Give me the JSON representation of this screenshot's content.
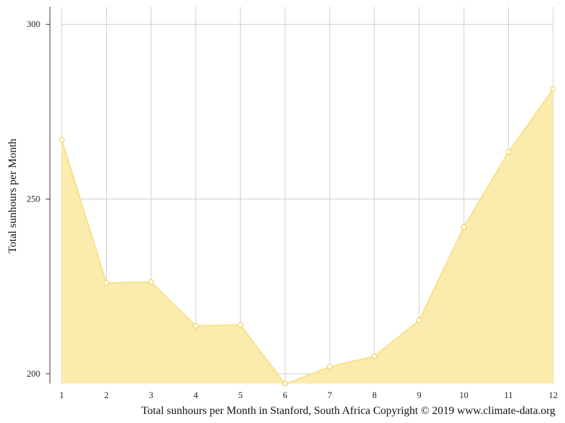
{
  "chart_data": {
    "type": "area",
    "x": [
      1,
      2,
      3,
      4,
      5,
      6,
      7,
      8,
      9,
      10,
      11,
      12
    ],
    "series": [
      {
        "values": [
          267,
          226,
          226.3,
          213.7,
          214,
          197,
          202,
          205,
          215.3,
          242,
          263.5,
          281.5
        ]
      }
    ],
    "ylabel": "Total sunhours per Month",
    "xlabel": "Total sunhours per Month in Stanford, South Africa Copyright © 2019 www.climate-data.org",
    "ylim": [
      197.2,
      305
    ],
    "yticks": [
      200,
      250,
      300
    ],
    "xticks": [
      1,
      2,
      3,
      4,
      5,
      6,
      7,
      8,
      9,
      10,
      11,
      12
    ],
    "grid": true,
    "colors": {
      "fill": "#faeba9",
      "line": "#f7e08a",
      "marker_stroke": "#f0d060",
      "marker_fill": "#ffffff",
      "grid": "#cccccc",
      "axis": "#333333"
    }
  }
}
